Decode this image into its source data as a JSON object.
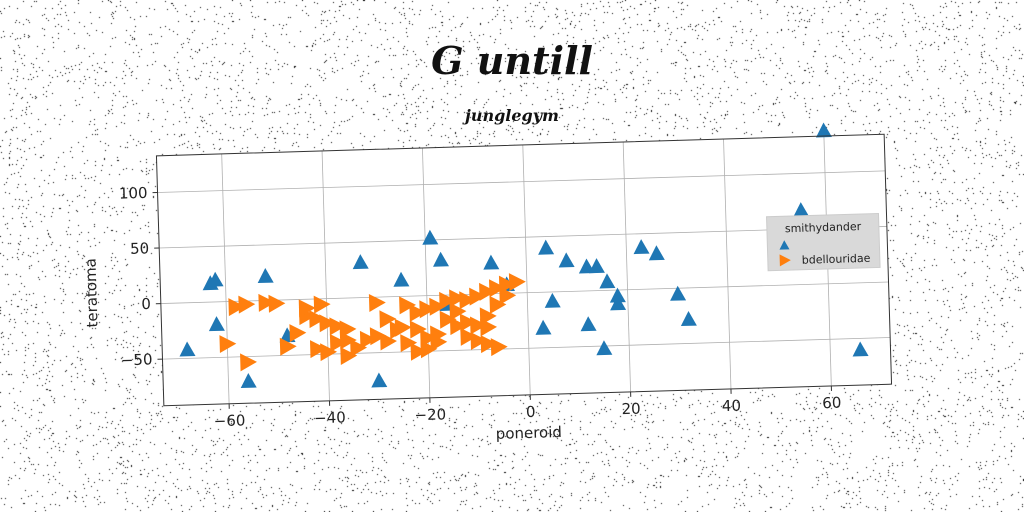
{
  "chart_data": {
    "type": "scatter",
    "title": "G untill",
    "subtitle": "junglegym",
    "xlabel": "poneroid",
    "ylabel": "teratoma",
    "xlim": [
      -73,
      72
    ],
    "ylim": [
      -92,
      133
    ],
    "xticks": [
      -60,
      -40,
      -20,
      0,
      20,
      40,
      60
    ],
    "yticks": [
      -50,
      0,
      50,
      100
    ],
    "grid": true,
    "legend_position": "right",
    "series": [
      {
        "name": "smithydander",
        "marker": "triangle-up",
        "color": "#1f77b4",
        "points": [
          [
            -63,
            17
          ],
          [
            -62,
            20
          ],
          [
            -68,
            -42
          ],
          [
            -62,
            -20
          ],
          [
            -56,
            -72
          ],
          [
            -52,
            22
          ],
          [
            -48,
            -32
          ],
          [
            -33,
            32
          ],
          [
            -30,
            -75
          ],
          [
            -25,
            15
          ],
          [
            -19,
            52
          ],
          [
            -17,
            32
          ],
          [
            -7,
            28
          ],
          [
            -4,
            8
          ],
          [
            -16,
            -8
          ],
          [
            4,
            40
          ],
          [
            5,
            -8
          ],
          [
            3,
            -32
          ],
          [
            8,
            28
          ],
          [
            12,
            22
          ],
          [
            14,
            22
          ],
          [
            12,
            -30
          ],
          [
            15,
            -52
          ],
          [
            16,
            8
          ],
          [
            18,
            -5
          ],
          [
            18,
            -12
          ],
          [
            23,
            38
          ],
          [
            26,
            32
          ],
          [
            30,
            -5
          ],
          [
            32,
            -28
          ],
          [
            55,
            67
          ],
          [
            60,
            138
          ],
          [
            66,
            -60
          ]
        ]
      },
      {
        "name": "bdellouridae",
        "marker": "triangle-right",
        "color": "#ff7f0e",
        "points": [
          [
            -58,
            -5
          ],
          [
            -56,
            -3
          ],
          [
            -52,
            -2
          ],
          [
            -50,
            -3
          ],
          [
            -41,
            -5
          ],
          [
            -44,
            -15
          ],
          [
            -42,
            -18
          ],
          [
            -38,
            -25
          ],
          [
            -36,
            -28
          ],
          [
            -38,
            -40
          ],
          [
            -40,
            -48
          ],
          [
            -36,
            -52
          ],
          [
            -32,
            -38
          ],
          [
            -30,
            -35
          ],
          [
            -28,
            -40
          ],
          [
            -25,
            -28
          ],
          [
            -22,
            -30
          ],
          [
            -20,
            -38
          ],
          [
            -18,
            -42
          ],
          [
            -30,
            -5
          ],
          [
            -24,
            -8
          ],
          [
            -22,
            -15
          ],
          [
            -20,
            -12
          ],
          [
            -18,
            -10
          ],
          [
            -16,
            -5
          ],
          [
            -14,
            -15
          ],
          [
            -12,
            -25
          ],
          [
            -10,
            -28
          ],
          [
            -8,
            -30
          ],
          [
            -10,
            -42
          ],
          [
            -8,
            -45
          ],
          [
            -6,
            -48
          ],
          [
            -12,
            -5
          ],
          [
            -10,
            -2
          ],
          [
            -8,
            2
          ],
          [
            -6,
            5
          ],
          [
            -4,
            8
          ],
          [
            -2,
            10
          ],
          [
            -14,
            -3
          ],
          [
            -16,
            -22
          ],
          [
            -18,
            -35
          ],
          [
            -20,
            -48
          ],
          [
            -22,
            -50
          ],
          [
            -46,
            -30
          ],
          [
            -48,
            -42
          ],
          [
            -60,
            -38
          ],
          [
            -56,
            -55
          ],
          [
            -26,
            -30
          ],
          [
            -34,
            -45
          ],
          [
            -44,
            -8
          ],
          [
            -14,
            -28
          ],
          [
            -12,
            -38
          ],
          [
            -24,
            -42
          ],
          [
            -28,
            -20
          ],
          [
            -42,
            -45
          ],
          [
            -8,
            -20
          ],
          [
            -6,
            -10
          ],
          [
            -4,
            -2
          ],
          [
            -36,
            -38
          ],
          [
            -40,
            -22
          ]
        ]
      }
    ]
  }
}
